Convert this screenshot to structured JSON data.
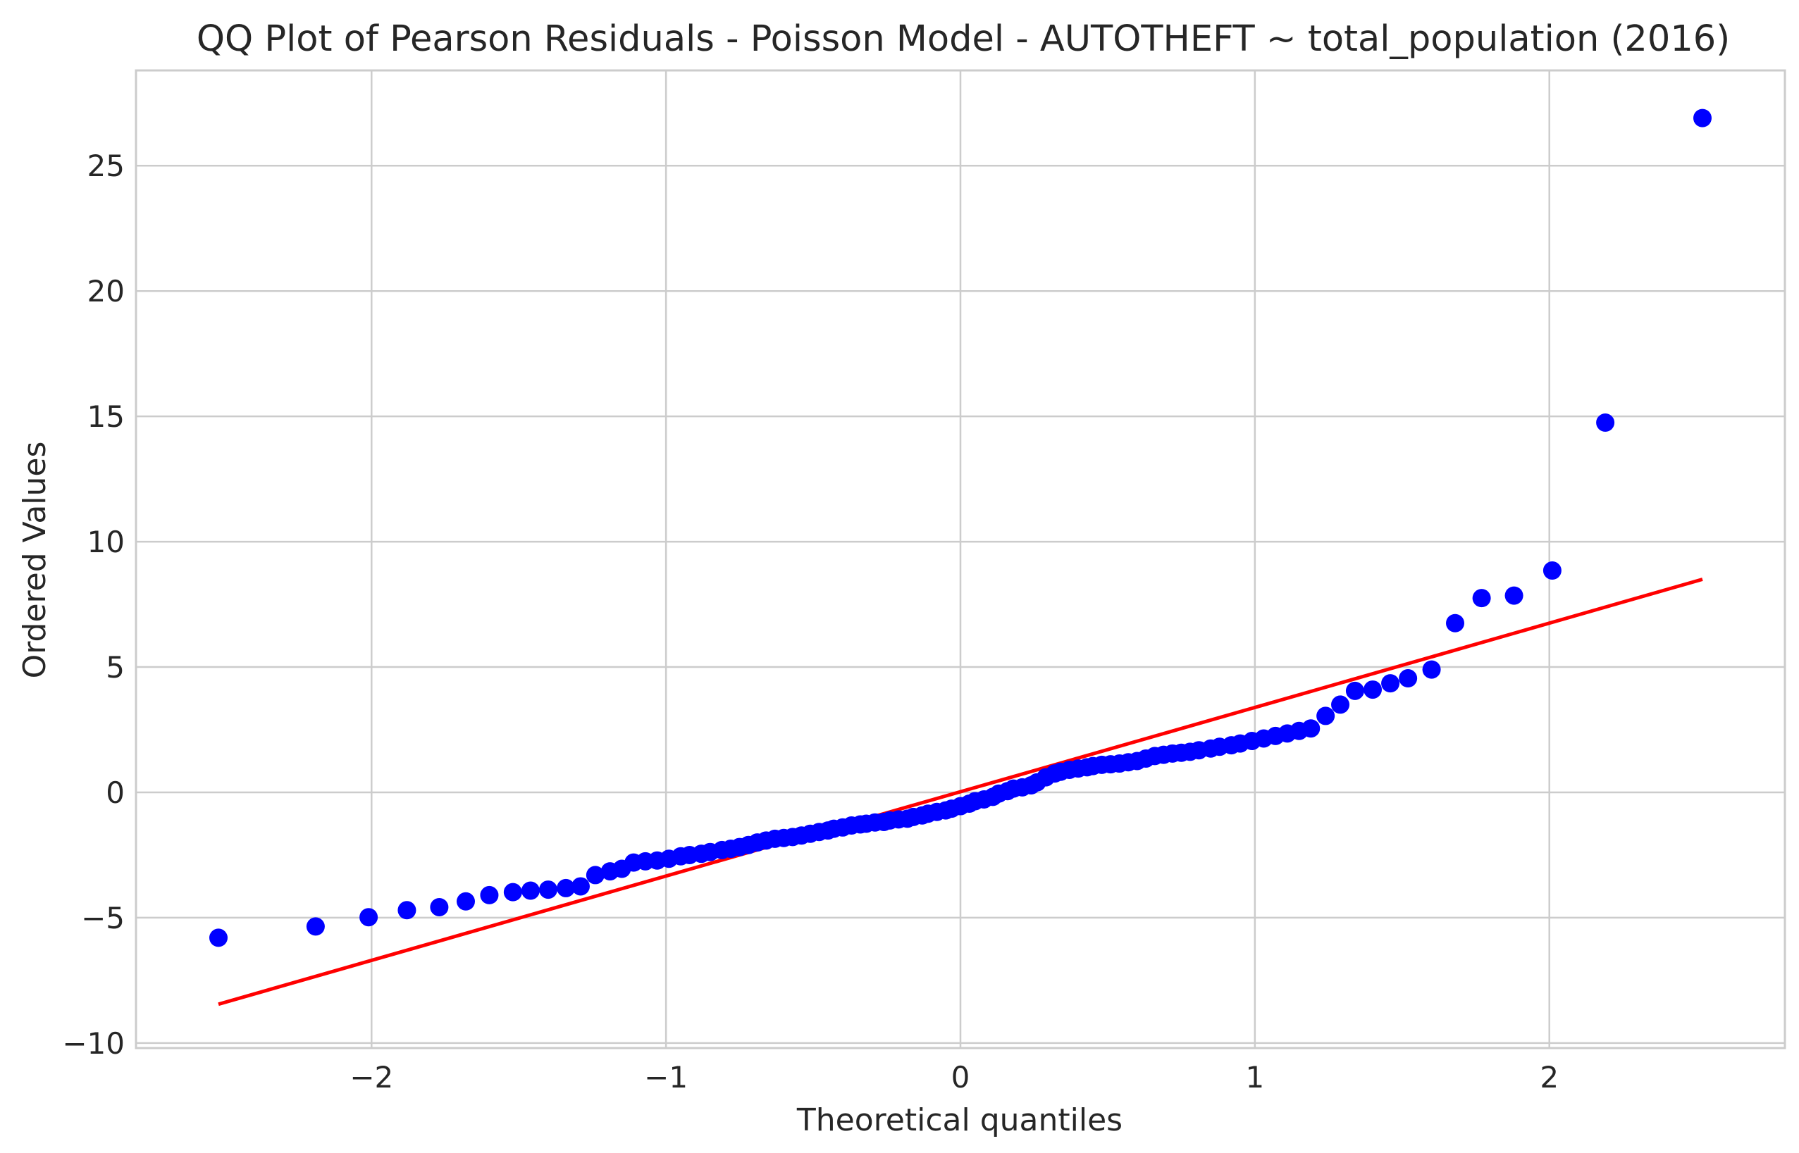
{
  "chart_data": {
    "type": "scatter",
    "title": "QQ Plot of Pearson Residuals - Poisson Model - AUTOTHEFT ~ total_population (2016)",
    "xlabel": "Theoretical quantiles",
    "ylabel": "Ordered Values",
    "xlim": [
      -2.8,
      2.8
    ],
    "ylim": [
      -10.2,
      28.8
    ],
    "xticks": [
      -2,
      -1,
      0,
      1,
      2
    ],
    "xtick_labels": [
      "−2",
      "−1",
      "0",
      "1",
      "2"
    ],
    "yticks": [
      -10,
      -5,
      0,
      5,
      10,
      15,
      20,
      25
    ],
    "ytick_labels": [
      "−10",
      "−5",
      "0",
      "5",
      "10",
      "15",
      "20",
      "25"
    ],
    "grid": true,
    "colors": {
      "points": "#0000ff",
      "fit_line": "#ff0000",
      "grid": "#cccccc"
    },
    "series": [
      {
        "kind": "points",
        "x": [
          -2.52,
          -2.19,
          -2.01,
          -1.88,
          -1.77,
          -1.68,
          -1.6,
          -1.52,
          -1.46,
          -1.4,
          -1.34,
          -1.29,
          -1.24,
          -1.19,
          -1.15,
          -1.11,
          -1.07,
          -1.03,
          -0.99,
          -0.95,
          -0.92,
          -0.88,
          -0.85,
          -0.81,
          -0.78,
          -0.75,
          -0.72,
          -0.69,
          -0.66,
          -0.63,
          -0.6,
          -0.57,
          -0.54,
          -0.51,
          -0.48,
          -0.45,
          -0.43,
          -0.4,
          -0.37,
          -0.34,
          -0.32,
          -0.29,
          -0.26,
          -0.24,
          -0.21,
          -0.18,
          -0.16,
          -0.13,
          -0.11,
          -0.08,
          -0.05,
          -0.03,
          0.0,
          0.03,
          0.05,
          0.08,
          0.11,
          0.13,
          0.16,
          0.18,
          0.21,
          0.24,
          0.26,
          0.29,
          0.32,
          0.34,
          0.37,
          0.4,
          0.43,
          0.45,
          0.48,
          0.51,
          0.54,
          0.57,
          0.6,
          0.63,
          0.66,
          0.69,
          0.72,
          0.75,
          0.78,
          0.81,
          0.85,
          0.88,
          0.92,
          0.95,
          0.99,
          1.03,
          1.07,
          1.11,
          1.15,
          1.19,
          1.24,
          1.29,
          1.34,
          1.4,
          1.46,
          1.52,
          1.6,
          1.68,
          1.77,
          1.88,
          2.01,
          2.19,
          2.52
        ],
        "y": [
          -5.8,
          -5.35,
          -4.98,
          -4.7,
          -4.58,
          -4.35,
          -4.1,
          -3.98,
          -3.92,
          -3.88,
          -3.82,
          -3.75,
          -3.3,
          -3.15,
          -3.05,
          -2.8,
          -2.75,
          -2.72,
          -2.65,
          -2.55,
          -2.5,
          -2.45,
          -2.38,
          -2.3,
          -2.25,
          -2.18,
          -2.1,
          -2.0,
          -1.92,
          -1.85,
          -1.82,
          -1.78,
          -1.72,
          -1.65,
          -1.58,
          -1.52,
          -1.45,
          -1.4,
          -1.32,
          -1.28,
          -1.25,
          -1.2,
          -1.18,
          -1.12,
          -1.08,
          -1.05,
          -0.98,
          -0.92,
          -0.85,
          -0.78,
          -0.72,
          -0.65,
          -0.55,
          -0.45,
          -0.35,
          -0.28,
          -0.18,
          -0.05,
          0.05,
          0.15,
          0.2,
          0.28,
          0.4,
          0.6,
          0.75,
          0.82,
          0.9,
          0.95,
          1.0,
          1.05,
          1.1,
          1.12,
          1.15,
          1.2,
          1.25,
          1.35,
          1.45,
          1.5,
          1.55,
          1.58,
          1.62,
          1.68,
          1.75,
          1.82,
          1.88,
          1.95,
          2.05,
          2.15,
          2.25,
          2.35,
          2.45,
          2.55,
          3.05,
          3.5,
          4.05,
          4.1,
          4.35,
          4.55,
          4.9,
          6.75,
          7.75,
          7.85,
          8.85,
          14.75,
          26.9
        ]
      },
      {
        "kind": "line",
        "x": [
          -2.52,
          2.52
        ],
        "y": [
          -8.45,
          8.5
        ]
      }
    ]
  }
}
